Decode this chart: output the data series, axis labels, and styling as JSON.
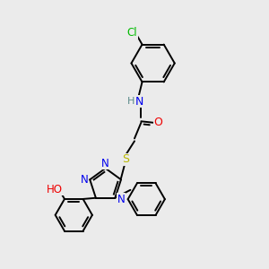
{
  "bg_color": "#ebebeb",
  "atom_colors": {
    "C": "#000000",
    "H": "#5a8a8a",
    "N": "#0000ee",
    "O": "#ee0000",
    "S": "#b8b800",
    "Cl": "#00bb00"
  },
  "bond_color": "#000000",
  "bond_width": 1.4,
  "figsize": [
    3.0,
    3.0
  ],
  "dpi": 100
}
